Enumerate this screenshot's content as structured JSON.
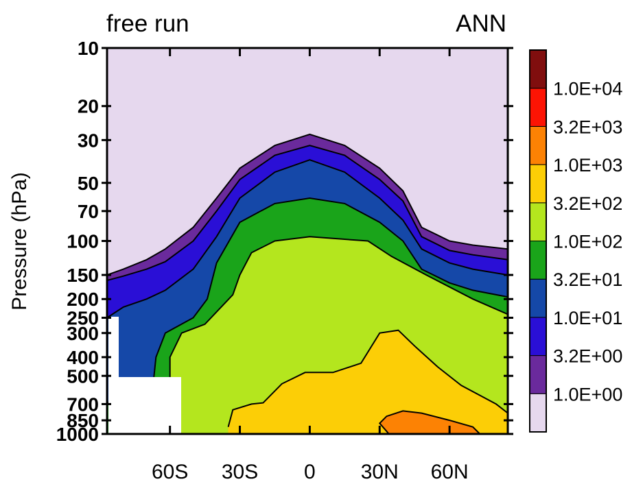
{
  "chart_data": {
    "type": "contour",
    "title_left": "free run",
    "title_right": "ANN",
    "ylabel": "Pressure (hPa)",
    "x_ticks": [
      {
        "value": -60,
        "label": "60S"
      },
      {
        "value": -30,
        "label": "30S"
      },
      {
        "value": 0,
        "label": "0"
      },
      {
        "value": 30,
        "label": "30N"
      },
      {
        "value": 60,
        "label": "60N"
      }
    ],
    "x_range": [
      -87,
      85
    ],
    "y_scale": "log-pressure",
    "y_ticks": [
      {
        "value": 1000,
        "label": "1000"
      },
      {
        "value": 850,
        "label": "850"
      },
      {
        "value": 700,
        "label": "700"
      },
      {
        "value": 500,
        "label": "500"
      },
      {
        "value": 400,
        "label": "400"
      },
      {
        "value": 300,
        "label": "300"
      },
      {
        "value": 250,
        "label": "250"
      },
      {
        "value": 200,
        "label": "200"
      },
      {
        "value": 150,
        "label": "150"
      },
      {
        "value": 100,
        "label": "100"
      },
      {
        "value": 70,
        "label": "70"
      },
      {
        "value": 50,
        "label": "50"
      },
      {
        "value": 30,
        "label": "30"
      },
      {
        "value": 20,
        "label": "20"
      },
      {
        "value": 10,
        "label": "10"
      }
    ],
    "y_range": [
      1000,
      10
    ],
    "colorbar": {
      "colors": [
        "#e6d8ee",
        "#6a2a9c",
        "#2a0fd6",
        "#1548a8",
        "#1aa41a",
        "#b4e61e",
        "#fcce06",
        "#fc8204",
        "#fc1404",
        "#800e0e"
      ],
      "labels": [
        "1.0E+00",
        "3.2E+00",
        "1.0E+01",
        "3.2E+01",
        "1.0E+02",
        "3.2E+02",
        "1.0E+03",
        "3.2E+03",
        "1.0E+04"
      ]
    },
    "contour_levels": [
      {
        "level": "1.0E+00",
        "color": "#6a2a9c",
        "points": [
          [
            -87,
            150
          ],
          [
            -80,
            140
          ],
          [
            -70,
            125
          ],
          [
            -62,
            110
          ],
          [
            -50,
            85
          ],
          [
            -40,
            60
          ],
          [
            -30,
            42
          ],
          [
            -15,
            32
          ],
          [
            0,
            28
          ],
          [
            15,
            32
          ],
          [
            30,
            42
          ],
          [
            40,
            55
          ],
          [
            48,
            85
          ],
          [
            60,
            100
          ],
          [
            70,
            105
          ],
          [
            85,
            110
          ]
        ]
      },
      {
        "level": "3.2E+00",
        "color": "#2a0fd6",
        "points": [
          [
            -87,
            160
          ],
          [
            -80,
            152
          ],
          [
            -70,
            140
          ],
          [
            -62,
            128
          ],
          [
            -50,
            100
          ],
          [
            -40,
            70
          ],
          [
            -30,
            48
          ],
          [
            -15,
            36
          ],
          [
            0,
            32
          ],
          [
            15,
            36
          ],
          [
            30,
            48
          ],
          [
            40,
            62
          ],
          [
            48,
            95
          ],
          [
            60,
            112
          ],
          [
            70,
            118
          ],
          [
            85,
            125
          ]
        ]
      },
      {
        "level": "1.0E+01",
        "color": "#1548a8",
        "points": [
          [
            -87,
            250
          ],
          [
            -80,
            220
          ],
          [
            -70,
            200
          ],
          [
            -62,
            180
          ],
          [
            -50,
            140
          ],
          [
            -40,
            95
          ],
          [
            -30,
            60
          ],
          [
            -15,
            44
          ],
          [
            0,
            38
          ],
          [
            15,
            44
          ],
          [
            30,
            60
          ],
          [
            40,
            78
          ],
          [
            48,
            110
          ],
          [
            60,
            130
          ],
          [
            70,
            140
          ],
          [
            85,
            150
          ]
        ]
      },
      {
        "level": "3.2E+01",
        "color": "#1aa41a",
        "points": [
          [
            -87,
            1000
          ],
          [
            -87,
            680
          ],
          [
            -80,
            750
          ],
          [
            -75,
            820
          ],
          [
            -70,
            920
          ],
          [
            -67,
            1000
          ],
          [
            -58,
            1000
          ],
          [
            -62,
            850
          ],
          [
            -68,
            680
          ],
          [
            -66,
            400
          ],
          [
            -62,
            300
          ],
          [
            -50,
            250
          ],
          [
            -44,
            200
          ],
          [
            -40,
            130
          ],
          [
            -30,
            80
          ],
          [
            -15,
            64
          ],
          [
            0,
            60
          ],
          [
            15,
            64
          ],
          [
            30,
            80
          ],
          [
            40,
            100
          ],
          [
            48,
            140
          ],
          [
            60,
            165
          ],
          [
            70,
            180
          ],
          [
            85,
            195
          ]
        ]
      },
      {
        "level": "1.0E+02",
        "color": "#b4e61e",
        "points": [
          [
            -55,
            1000
          ],
          [
            -62,
            850
          ],
          [
            -60,
            700
          ],
          [
            -60,
            400
          ],
          [
            -55,
            300
          ],
          [
            -45,
            270
          ],
          [
            -33,
            190
          ],
          [
            -30,
            150
          ],
          [
            -25,
            115
          ],
          [
            -15,
            100
          ],
          [
            0,
            95
          ],
          [
            10,
            97
          ],
          [
            25,
            100
          ],
          [
            35,
            120
          ],
          [
            50,
            150
          ],
          [
            70,
            200
          ],
          [
            85,
            240
          ]
        ]
      },
      {
        "level": "3.2E+02",
        "color": "#fcce06",
        "points": [
          [
            -35,
            920
          ],
          [
            -33,
            750
          ],
          [
            -25,
            700
          ],
          [
            -20,
            690
          ],
          [
            -12,
            550
          ],
          [
            -2,
            480
          ],
          [
            10,
            480
          ],
          [
            22,
            430
          ],
          [
            30,
            300
          ],
          [
            38,
            290
          ],
          [
            45,
            350
          ],
          [
            55,
            450
          ],
          [
            65,
            560
          ],
          [
            80,
            700
          ],
          [
            85,
            780
          ]
        ]
      },
      {
        "level": "1.0E+03",
        "color": "#fc8204",
        "points": [
          [
            34,
            1000
          ],
          [
            30,
            880
          ],
          [
            33,
            810
          ],
          [
            40,
            760
          ],
          [
            48,
            780
          ],
          [
            60,
            850
          ],
          [
            70,
            920
          ],
          [
            73,
            1000
          ]
        ]
      }
    ]
  }
}
